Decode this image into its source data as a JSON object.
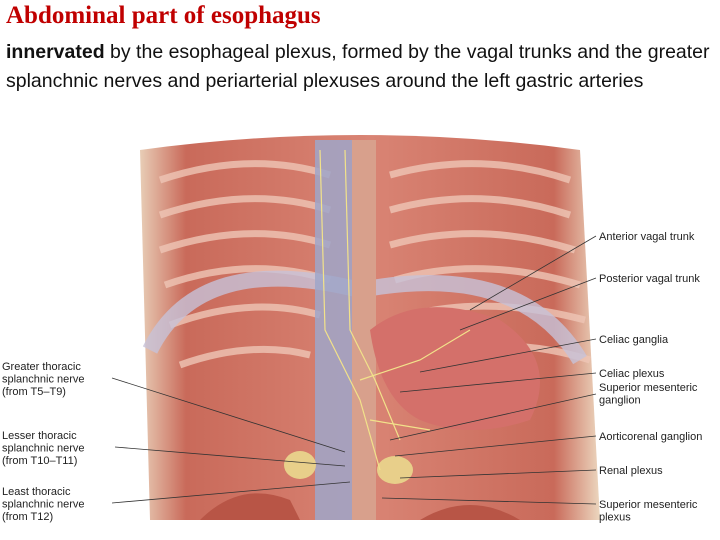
{
  "slide": {
    "title": "Abdominal part of esophagus",
    "body": {
      "bold": "innervated",
      "text": "by the esophageal plexus, formed by the vagal trunks and the greater splanchnic nerves and periarterial plexuses around the left gastric arteries"
    },
    "figure": {
      "left_labels": [
        {
          "lines": [
            "Greater thoracic",
            "splanchnic nerve",
            "(from T5–T9)"
          ]
        },
        {
          "lines": [
            "Lesser thoracic",
            "splanchnic nerve",
            "(from T10–T11)"
          ]
        },
        {
          "lines": [
            "Least thoracic",
            "splanchnic nerve",
            "(from T12)"
          ]
        }
      ],
      "right_labels": [
        {
          "lines": [
            "Anterior vagal trunk"
          ]
        },
        {
          "lines": [
            "Posterior vagal trunk"
          ]
        },
        {
          "lines": [
            "Celiac ganglia"
          ]
        },
        {
          "lines": [
            "Celiac plexus"
          ]
        },
        {
          "lines": [
            "Superior mesenteric",
            "ganglion"
          ]
        },
        {
          "lines": [
            "Aorticorenal ganglion"
          ]
        },
        {
          "lines": [
            "Renal plexus"
          ]
        },
        {
          "lines": [
            "Superior mesenteric",
            "plexus"
          ]
        }
      ]
    }
  }
}
